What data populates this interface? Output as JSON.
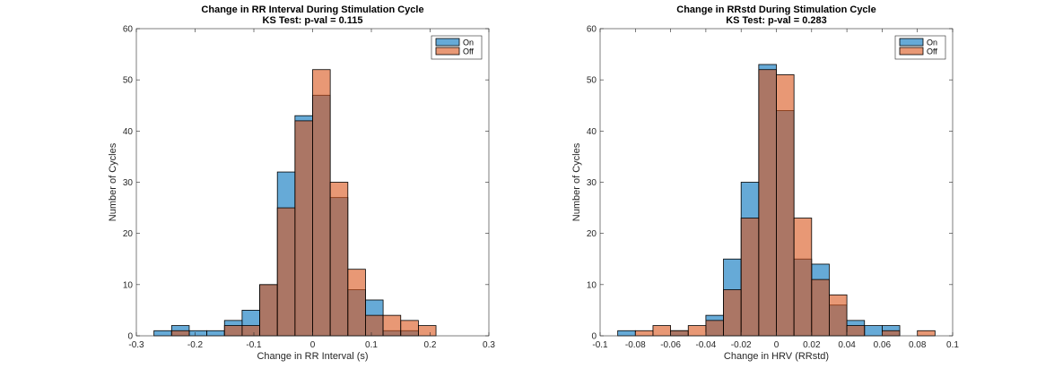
{
  "chart_data": [
    {
      "type": "bar",
      "title": "Change in RR Interval During Stimulation Cycle",
      "subtitle": "KS Test: p-val = 0.115",
      "xlabel": "Change in RR Interval (s)",
      "ylabel": "Number of Cycles",
      "xlim": [
        -0.3,
        0.3
      ],
      "ylim": [
        0,
        60
      ],
      "xticks": [
        -0.3,
        -0.2,
        -0.1,
        0,
        0.1,
        0.2,
        0.3
      ],
      "xtick_labels": [
        "-0.3",
        "-0.2",
        "-0.1",
        "0",
        "0.1",
        "0.2",
        "0.3"
      ],
      "yticks": [
        0,
        10,
        20,
        30,
        40,
        50,
        60
      ],
      "ytick_labels": [
        "0",
        "10",
        "20",
        "30",
        "40",
        "50",
        "60"
      ],
      "bin_edges": [
        -0.27,
        -0.24,
        -0.21,
        -0.18,
        -0.15,
        -0.12,
        -0.09,
        -0.06,
        -0.03,
        0.0,
        0.03,
        0.06,
        0.09,
        0.12,
        0.15,
        0.18,
        0.21
      ],
      "series": [
        {
          "name": "On",
          "color": "#0072BD",
          "values": [
            1,
            2,
            1,
            1,
            3,
            5,
            10,
            32,
            43,
            47,
            27,
            9,
            7,
            1,
            1,
            0
          ]
        },
        {
          "name": "Off",
          "color": "#D95319",
          "values": [
            0,
            1,
            0,
            0,
            2,
            2,
            10,
            25,
            42,
            52,
            30,
            13,
            4,
            4,
            3,
            2
          ]
        }
      ],
      "legend": "top-right"
    },
    {
      "type": "bar",
      "title": "Change in RRstd During Stimulation Cycle",
      "subtitle": "KS Test: p-val = 0.283",
      "xlabel": "Change in HRV (RRstd)",
      "ylabel": "Number of Cycles",
      "xlim": [
        -0.1,
        0.1
      ],
      "ylim": [
        0,
        60
      ],
      "xticks": [
        -0.1,
        -0.08,
        -0.06,
        -0.04,
        -0.02,
        0,
        0.02,
        0.04,
        0.06,
        0.08,
        0.1
      ],
      "xtick_labels": [
        "-0.1",
        "-0.08",
        "-0.06",
        "-0.04",
        "-0.02",
        "0",
        "0.02",
        "0.04",
        "0.06",
        "0.08",
        "0.1"
      ],
      "yticks": [
        0,
        10,
        20,
        30,
        40,
        50,
        60
      ],
      "ytick_labels": [
        "0",
        "10",
        "20",
        "30",
        "40",
        "50",
        "60"
      ],
      "bin_edges": [
        -0.09,
        -0.08,
        -0.07,
        -0.06,
        -0.05,
        -0.04,
        -0.03,
        -0.02,
        -0.01,
        0.0,
        0.01,
        0.02,
        0.03,
        0.04,
        0.05,
        0.06,
        0.07,
        0.08,
        0.09
      ],
      "series": [
        {
          "name": "On",
          "color": "#0072BD",
          "values": [
            1,
            0,
            0,
            1,
            0,
            4,
            15,
            30,
            53,
            44,
            15,
            14,
            6,
            3,
            2,
            2,
            0,
            0
          ]
        },
        {
          "name": "Off",
          "color": "#D95319",
          "values": [
            0,
            1,
            2,
            1,
            2,
            3,
            9,
            23,
            52,
            51,
            23,
            11,
            8,
            2,
            0,
            1,
            0,
            1
          ]
        }
      ],
      "legend": "top-right"
    }
  ]
}
